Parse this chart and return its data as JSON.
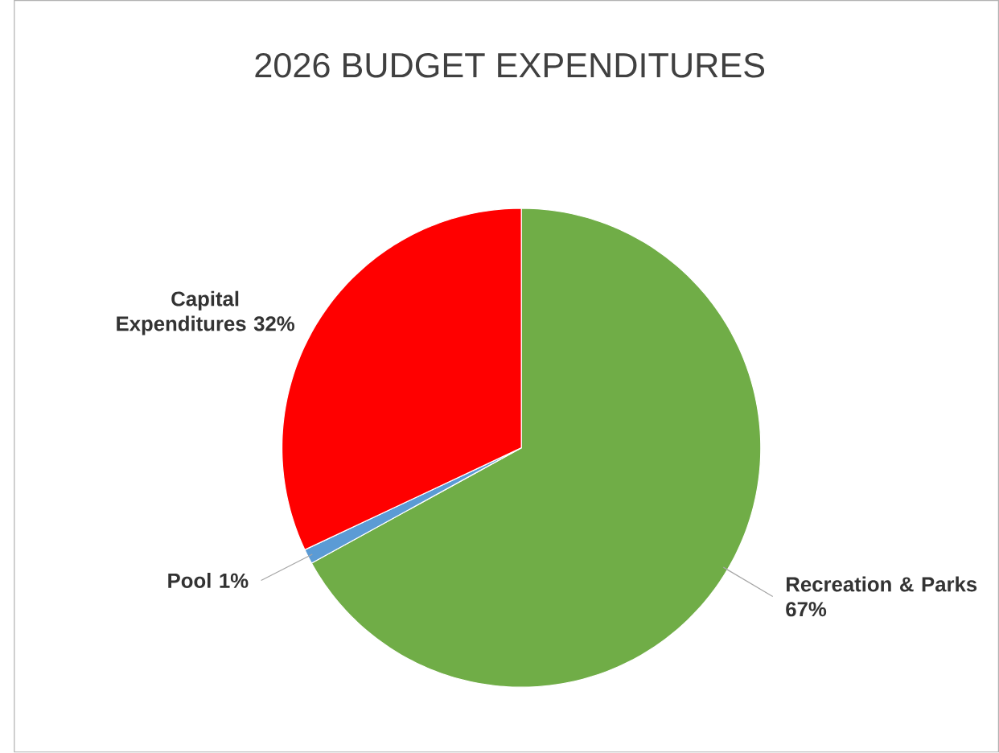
{
  "chart_data": {
    "type": "pie",
    "title": "2026 BUDGET EXPENDITURES",
    "categories": [
      "Recreation & Parks",
      "Pool",
      "Capital Expenditures"
    ],
    "values": [
      67,
      1,
      32
    ],
    "value_labels": [
      "67%",
      "1%",
      "32%"
    ],
    "colors": [
      "#70ad47",
      "#5b9bd5",
      "#ff0000"
    ]
  }
}
